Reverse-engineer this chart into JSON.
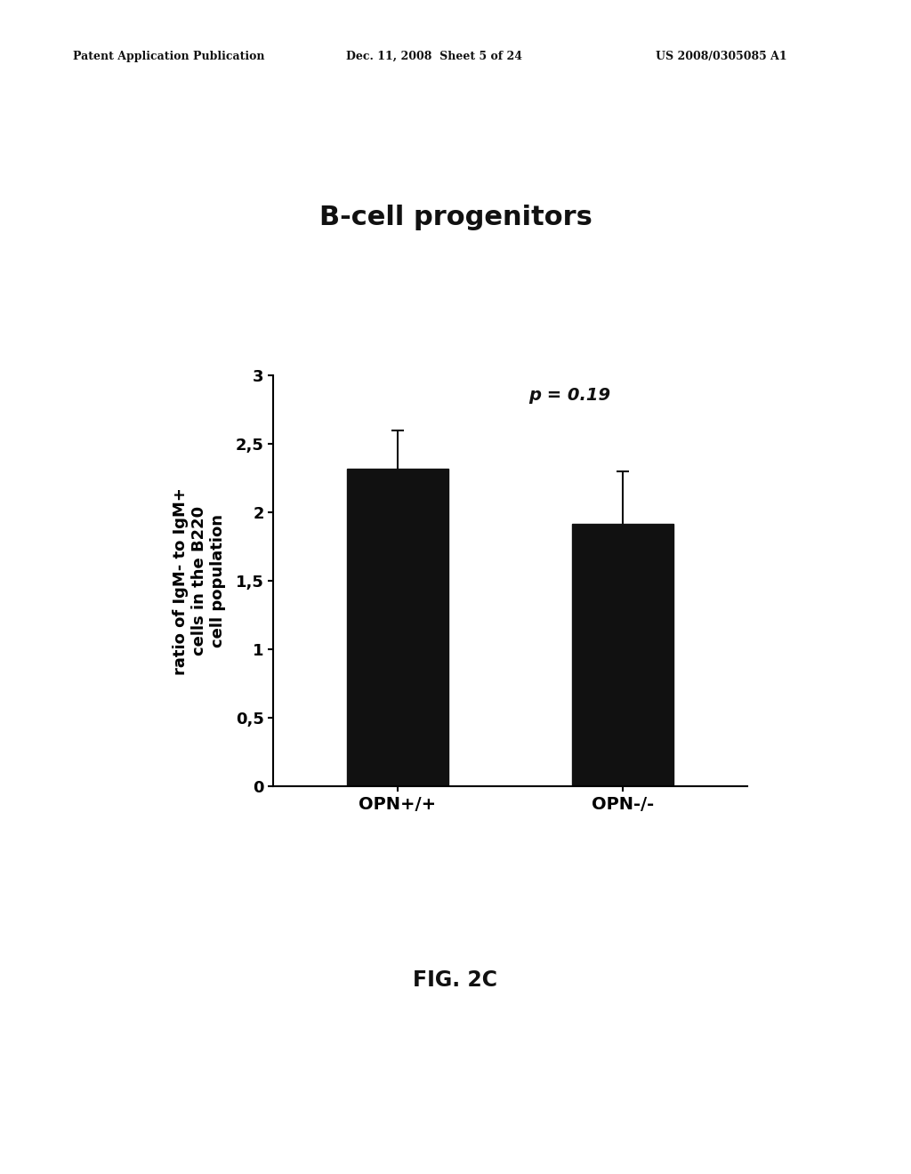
{
  "title": "B-cell progenitors",
  "fig_label": "FIG. 2C",
  "patent_left": "Patent Application Publication",
  "patent_mid": "Dec. 11, 2008  Sheet 5 of 24",
  "patent_right": "US 2008/0305085 A1",
  "categories": [
    "OPN+/+",
    "OPN-/-"
  ],
  "values": [
    2.32,
    1.92
  ],
  "errors": [
    0.28,
    0.38
  ],
  "bar_color": "#111111",
  "bar_width": 0.45,
  "ylabel_line1": "ratio of IgM- to IgM+",
  "ylabel_line2": "cells in the B220",
  "ylabel_line3": "cell population",
  "ylim": [
    0,
    3
  ],
  "yticks": [
    0,
    0.5,
    1,
    1.5,
    2,
    2.5,
    3
  ],
  "ytick_labels": [
    "0",
    "0,5",
    "1",
    "1,5",
    "2",
    "2,5",
    "3"
  ],
  "pvalue_text": "p = 0.19",
  "background_color": "#ffffff",
  "title_fontsize": 22,
  "tick_fontsize": 13,
  "label_fontsize": 13,
  "pvalue_fontsize": 14
}
